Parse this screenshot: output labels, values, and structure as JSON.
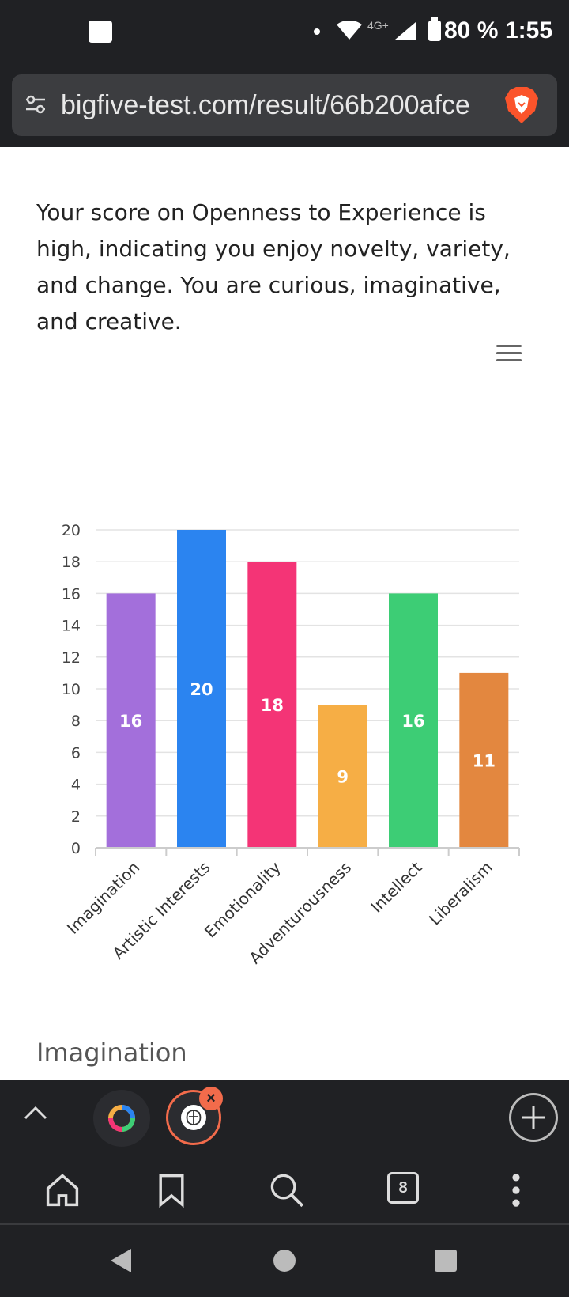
{
  "status_bar": {
    "network": "4G+",
    "battery": "80 %",
    "time": "1:55"
  },
  "browser": {
    "url": "bigfive-test.com/result/66b200afce"
  },
  "page": {
    "description": "Your score on Openness to Experience is high, indicating you enjoy novelty, variety, and change. You are curious, imaginative, and creative.",
    "next_heading": "Imagination"
  },
  "chart_data": {
    "type": "bar",
    "categories": [
      "Imagination",
      "Artistic Interests",
      "Emotionality",
      "Adventurousness",
      "Intellect",
      "Liberalism"
    ],
    "values": [
      16,
      20,
      18,
      9,
      16,
      11
    ],
    "colors": [
      "#a36fdb",
      "#2b84f0",
      "#f43476",
      "#f6ae45",
      "#3dcd75",
      "#e3873f"
    ],
    "ylim": [
      0,
      20
    ],
    "yticks": [
      0,
      2,
      4,
      6,
      8,
      10,
      12,
      14,
      16,
      18,
      20
    ],
    "grid": true,
    "data_labels": true
  },
  "tabs": {
    "open_count": "8"
  },
  "icons": [
    "tune-icon",
    "brave-lion-icon",
    "chart-menu-icon",
    "chevron-up-icon",
    "tab-favicon-icon",
    "brain-icon",
    "close-icon",
    "plus-icon",
    "home-icon",
    "bookmark-icon",
    "search-icon",
    "more-vert-icon",
    "back-icon",
    "home-circle-icon",
    "recents-icon"
  ]
}
